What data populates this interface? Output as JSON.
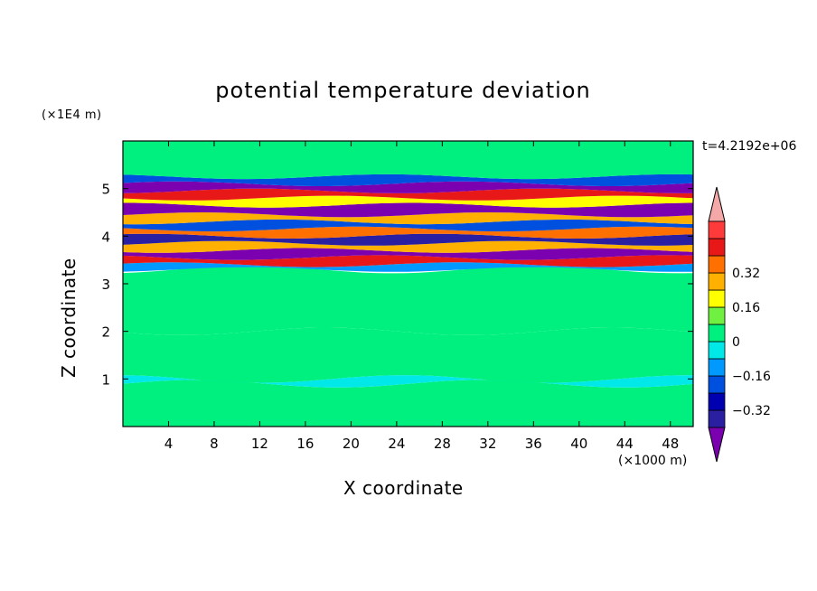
{
  "chart_data": {
    "type": "heatmap",
    "title": "potential temperature deviation",
    "xlabel": "X coordinate",
    "ylabel": "Z coordinate",
    "x_unit_label": "(×1000 m)",
    "y_unit_label": "(×1E4 m)",
    "time_label": "t=4.2192e+06",
    "xlim": [
      0,
      50
    ],
    "ylim": [
      0,
      6
    ],
    "x_ticks": [
      "4",
      "8",
      "12",
      "16",
      "20",
      "24",
      "28",
      "32",
      "36",
      "40",
      "44",
      "48"
    ],
    "y_ticks": [
      "1",
      "2",
      "3",
      "4",
      "5"
    ],
    "colorbar": {
      "min": -0.48,
      "max": 0.48,
      "step": 0.08,
      "tick_labels": [
        "0.32",
        "0.16",
        "0",
        "−0.16",
        "−0.32"
      ],
      "tick_values": [
        0.32,
        0.16,
        0,
        -0.16,
        -0.32
      ],
      "colors": [
        "#7B00B0",
        "#2A1FA0",
        "#0000B0",
        "#0050E0",
        "#0099FF",
        "#00E8E8",
        "#00F080",
        "#70F040",
        "#FFFF00",
        "#FFB000",
        "#FF7000",
        "#E81818",
        "#FF3A3A",
        "#F4A8A8"
      ]
    },
    "bands": [
      {
        "z0": 0.0,
        "z1": 0.9,
        "value": 0.03
      },
      {
        "z0": 0.9,
        "z1": 1.0,
        "value": -0.05
      },
      {
        "z0": 1.0,
        "z1": 2.0,
        "value": 0.02
      },
      {
        "z0": 2.0,
        "z1": 3.3,
        "value": 0.01
      },
      {
        "z0": 3.3,
        "z1": 3.4,
        "value": -0.12
      },
      {
        "z0": 3.4,
        "z1": 3.55,
        "value": 0.4
      },
      {
        "z0": 3.55,
        "z1": 3.7,
        "value": -0.4
      },
      {
        "z0": 3.7,
        "z1": 3.85,
        "value": 0.3
      },
      {
        "z0": 3.85,
        "z1": 4.0,
        "value": -0.36
      },
      {
        "z0": 4.0,
        "z1": 4.15,
        "value": 0.36
      },
      {
        "z0": 4.15,
        "z1": 4.3,
        "value": -0.2
      },
      {
        "z0": 4.3,
        "z1": 4.45,
        "value": 0.28
      },
      {
        "z0": 4.45,
        "z1": 4.65,
        "value": -0.44
      },
      {
        "z0": 4.65,
        "z1": 4.8,
        "value": 0.2
      },
      {
        "z0": 4.8,
        "z1": 4.95,
        "value": 0.44
      },
      {
        "z0": 4.95,
        "z1": 5.1,
        "value": -0.44
      },
      {
        "z0": 5.1,
        "z1": 5.25,
        "value": -0.18
      },
      {
        "z0": 5.25,
        "z1": 6.0,
        "value": 0.03
      }
    ]
  }
}
